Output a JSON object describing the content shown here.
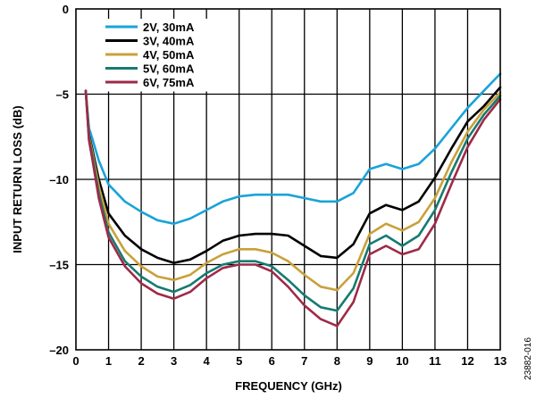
{
  "chart_data": {
    "type": "line",
    "title": "",
    "xlabel": "FREQUENCY (GHz)",
    "ylabel": "INPUT RETURN LOSS (dB)",
    "xlim": [
      0,
      13
    ],
    "ylim": [
      -20,
      0
    ],
    "grid": true,
    "legend_position": "top-left",
    "xticks": [
      0,
      1,
      2,
      3,
      4,
      5,
      6,
      7,
      8,
      9,
      10,
      11,
      12,
      13
    ],
    "yticks": [
      0,
      -5,
      -10,
      -15,
      -20
    ],
    "xtick_labels": [
      "0",
      "1",
      "2",
      "3",
      "4",
      "5",
      "6",
      "7",
      "8",
      "9",
      "10",
      "11",
      "12",
      "13"
    ],
    "ytick_labels": [
      "0",
      "–5",
      "–10",
      "–15",
      "–20"
    ],
    "series": [
      {
        "name": "2V, 30mA",
        "color": "#1aa3d9",
        "x": [
          0.3,
          0.4,
          0.5,
          0.7,
          1.0,
          1.5,
          2.0,
          2.5,
          3.0,
          3.5,
          4.0,
          4.5,
          5.0,
          5.5,
          6.0,
          6.5,
          7.0,
          7.5,
          8.0,
          8.5,
          9.0,
          9.5,
          10.0,
          10.5,
          11.0,
          11.5,
          12.0,
          12.5,
          13.0
        ],
        "y": [
          -4.8,
          -7.0,
          -7.6,
          -8.9,
          -10.3,
          -11.3,
          -11.9,
          -12.4,
          -12.6,
          -12.3,
          -11.8,
          -11.3,
          -11.0,
          -10.9,
          -10.9,
          -10.9,
          -11.1,
          -11.3,
          -11.3,
          -10.8,
          -9.4,
          -9.1,
          -9.4,
          -9.1,
          -8.2,
          -7.0,
          -5.8,
          -4.8,
          -3.8
        ]
      },
      {
        "name": "3V, 40mA",
        "color": "#000000",
        "x": [
          0.3,
          0.4,
          0.5,
          0.7,
          1.0,
          1.5,
          2.0,
          2.5,
          3.0,
          3.5,
          4.0,
          4.5,
          5.0,
          5.5,
          6.0,
          6.5,
          7.0,
          7.5,
          8.0,
          8.5,
          9.0,
          9.5,
          10.0,
          10.5,
          11.0,
          11.5,
          12.0,
          12.5,
          13.0
        ],
        "y": [
          -4.8,
          -7.4,
          -8.2,
          -10.0,
          -12.0,
          -13.3,
          -14.1,
          -14.6,
          -14.9,
          -14.7,
          -14.2,
          -13.6,
          -13.3,
          -13.2,
          -13.2,
          -13.3,
          -13.9,
          -14.5,
          -14.6,
          -13.8,
          -12.0,
          -11.5,
          -11.8,
          -11.3,
          -9.9,
          -8.2,
          -6.6,
          -5.7,
          -4.6
        ]
      },
      {
        "name": "4V, 50mA",
        "color": "#c9a13a",
        "x": [
          0.3,
          0.4,
          0.5,
          0.7,
          1.0,
          1.5,
          2.0,
          2.5,
          3.0,
          3.5,
          4.0,
          4.5,
          5.0,
          5.5,
          6.0,
          6.5,
          7.0,
          7.5,
          8.0,
          8.5,
          9.0,
          9.5,
          10.0,
          10.5,
          11.0,
          11.5,
          12.0,
          12.5,
          13.0
        ],
        "y": [
          -4.8,
          -7.5,
          -8.4,
          -10.4,
          -12.6,
          -14.2,
          -15.1,
          -15.7,
          -15.9,
          -15.6,
          -14.9,
          -14.4,
          -14.1,
          -14.1,
          -14.3,
          -14.8,
          -15.6,
          -16.3,
          -16.5,
          -15.5,
          -13.2,
          -12.6,
          -13.0,
          -12.5,
          -11.1,
          -9.0,
          -7.2,
          -5.9,
          -4.9
        ]
      },
      {
        "name": "5V, 60mA",
        "color": "#177a72",
        "x": [
          0.3,
          0.4,
          0.5,
          0.7,
          1.0,
          1.5,
          2.0,
          2.5,
          3.0,
          3.5,
          4.0,
          4.5,
          5.0,
          5.5,
          6.0,
          6.5,
          7.0,
          7.5,
          8.0,
          8.5,
          9.0,
          9.5,
          10.0,
          10.5,
          11.0,
          11.5,
          12.0,
          12.5,
          13.0
        ],
        "y": [
          -4.8,
          -7.6,
          -8.6,
          -10.8,
          -13.1,
          -14.8,
          -15.7,
          -16.3,
          -16.6,
          -16.2,
          -15.5,
          -15.0,
          -14.8,
          -14.8,
          -15.1,
          -15.9,
          -16.8,
          -17.5,
          -17.7,
          -16.4,
          -13.8,
          -13.3,
          -13.9,
          -13.3,
          -11.8,
          -9.6,
          -7.6,
          -6.2,
          -5.1
        ]
      },
      {
        "name": "6V, 75mA",
        "color": "#9e2a47",
        "x": [
          0.3,
          0.4,
          0.5,
          0.7,
          1.0,
          1.5,
          2.0,
          2.5,
          3.0,
          3.5,
          4.0,
          4.5,
          5.0,
          5.5,
          6.0,
          6.5,
          7.0,
          7.5,
          8.0,
          8.5,
          9.0,
          9.5,
          10.0,
          10.5,
          11.0,
          11.5,
          12.0,
          12.5,
          13.0
        ],
        "y": [
          -4.8,
          -7.7,
          -8.8,
          -11.1,
          -13.4,
          -15.1,
          -16.1,
          -16.7,
          -17.0,
          -16.6,
          -15.8,
          -15.2,
          -15.0,
          -15.0,
          -15.4,
          -16.3,
          -17.4,
          -18.2,
          -18.6,
          -17.2,
          -14.4,
          -13.9,
          -14.4,
          -14.1,
          -12.6,
          -10.3,
          -8.1,
          -6.5,
          -5.3
        ]
      }
    ]
  },
  "figure_id": "23882-016"
}
